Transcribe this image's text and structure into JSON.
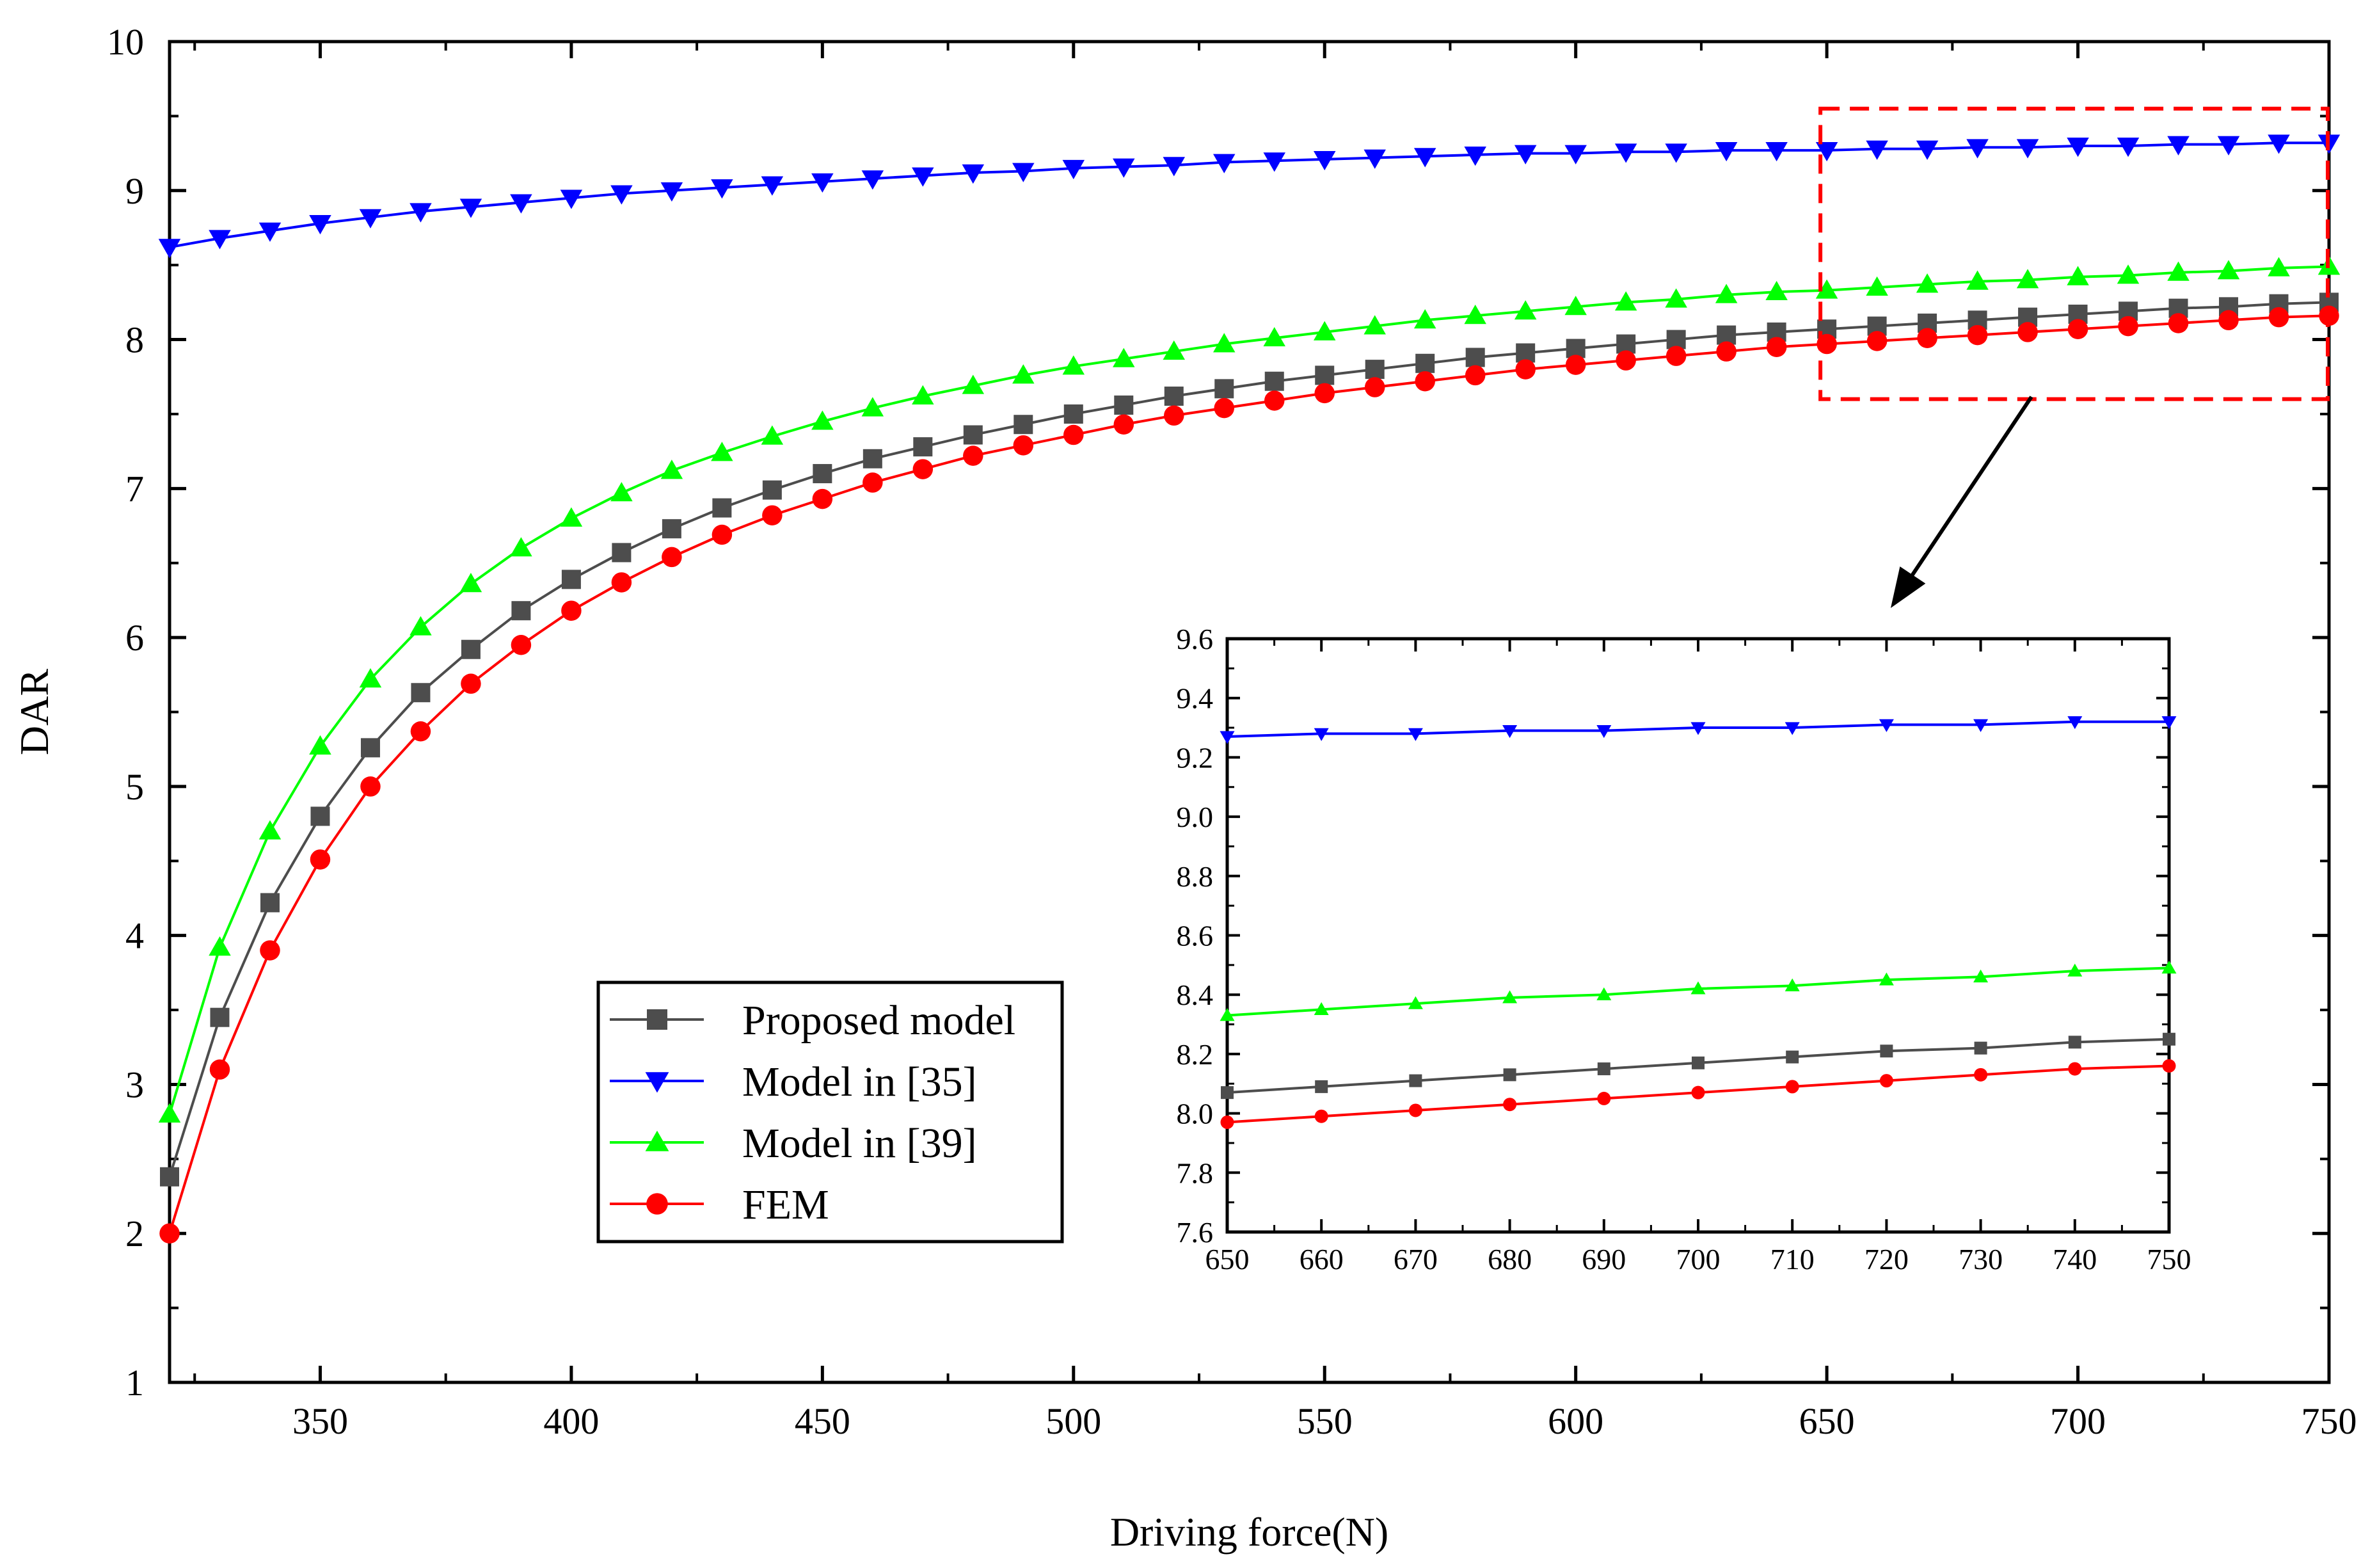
{
  "chart_data": [
    {
      "type": "line",
      "title": "",
      "xlabel": "Driving force(N)",
      "ylabel": "DAR",
      "xlim": [
        320,
        750
      ],
      "ylim": [
        1,
        10
      ],
      "xticks": [
        350,
        400,
        450,
        500,
        550,
        600,
        650,
        700,
        750
      ],
      "yticks": [
        1,
        2,
        3,
        4,
        5,
        6,
        7,
        8,
        9,
        10
      ],
      "legend_position": "center-left",
      "grid": false,
      "x": [
        320,
        330,
        340,
        350,
        360,
        370,
        380,
        390,
        400,
        410,
        420,
        430,
        440,
        450,
        460,
        470,
        480,
        490,
        500,
        510,
        520,
        530,
        540,
        550,
        560,
        570,
        580,
        590,
        600,
        610,
        620,
        630,
        640,
        650,
        660,
        670,
        680,
        690,
        700,
        710,
        720,
        730,
        740,
        750
      ],
      "series": [
        {
          "name": "Proposed model",
          "color": "#4d4d4d",
          "marker": "square",
          "values": [
            2.38,
            3.45,
            4.22,
            4.8,
            5.26,
            5.63,
            5.92,
            6.18,
            6.39,
            6.57,
            6.73,
            6.87,
            6.99,
            7.1,
            7.2,
            7.28,
            7.36,
            7.43,
            7.5,
            7.56,
            7.62,
            7.67,
            7.72,
            7.76,
            7.8,
            7.84,
            7.88,
            7.91,
            7.94,
            7.97,
            8.0,
            8.03,
            8.05,
            8.07,
            8.09,
            8.11,
            8.13,
            8.15,
            8.17,
            8.19,
            8.21,
            8.22,
            8.24,
            8.25
          ]
        },
        {
          "name": "Model in [35]",
          "color": "#0000ff",
          "marker": "triangle-down",
          "values": [
            8.62,
            8.68,
            8.73,
            8.78,
            8.82,
            8.86,
            8.89,
            8.92,
            8.95,
            8.98,
            9.0,
            9.02,
            9.04,
            9.06,
            9.08,
            9.1,
            9.12,
            9.13,
            9.15,
            9.16,
            9.17,
            9.19,
            9.2,
            9.21,
            9.22,
            9.23,
            9.24,
            9.25,
            9.25,
            9.26,
            9.26,
            9.27,
            9.27,
            9.27,
            9.28,
            9.28,
            9.29,
            9.29,
            9.3,
            9.3,
            9.31,
            9.31,
            9.32,
            9.32
          ]
        },
        {
          "name": "Model in [39]",
          "color": "#00ff00",
          "marker": "triangle-up",
          "values": [
            2.8,
            3.92,
            4.7,
            5.27,
            5.72,
            6.07,
            6.36,
            6.6,
            6.8,
            6.97,
            7.12,
            7.24,
            7.35,
            7.45,
            7.54,
            7.62,
            7.69,
            7.76,
            7.82,
            7.87,
            7.92,
            7.97,
            8.01,
            8.05,
            8.09,
            8.13,
            8.16,
            8.19,
            8.22,
            8.25,
            8.27,
            8.3,
            8.32,
            8.33,
            8.35,
            8.37,
            8.39,
            8.4,
            8.42,
            8.43,
            8.45,
            8.46,
            8.48,
            8.49
          ]
        },
        {
          "name": "FEM",
          "color": "#ff0000",
          "marker": "circle",
          "values": [
            2.0,
            3.1,
            3.9,
            4.51,
            5.0,
            5.37,
            5.69,
            5.95,
            6.18,
            6.37,
            6.54,
            6.69,
            6.82,
            6.93,
            7.04,
            7.13,
            7.22,
            7.29,
            7.36,
            7.43,
            7.49,
            7.54,
            7.59,
            7.64,
            7.68,
            7.72,
            7.76,
            7.8,
            7.83,
            7.86,
            7.89,
            7.92,
            7.95,
            7.97,
            7.99,
            8.01,
            8.03,
            8.05,
            8.07,
            8.09,
            8.11,
            8.13,
            8.15,
            8.16
          ]
        }
      ],
      "annotations": [
        "dashed red zoom box over 650–750 N, 7.6–9.55",
        "arrow pointing from zoom box to inset"
      ]
    },
    {
      "type": "line",
      "title": "",
      "role": "inset zoom",
      "xlabel": "",
      "ylabel": "",
      "xlim": [
        650,
        750
      ],
      "ylim": [
        7.6,
        9.6
      ],
      "xticks": [
        650,
        660,
        670,
        680,
        690,
        700,
        710,
        720,
        730,
        740,
        750
      ],
      "yticks": [
        7.6,
        7.8,
        8.0,
        8.2,
        8.4,
        8.6,
        8.8,
        9.0,
        9.2,
        9.4,
        9.6
      ],
      "ytick_labels": [
        "7.6",
        "7.8",
        "8.0",
        "8.2",
        "8.4",
        "8.6",
        "8.8",
        "9.0",
        "9.2",
        "9.4",
        "9.6"
      ],
      "x": [
        650,
        660,
        670,
        680,
        690,
        700,
        710,
        720,
        730,
        740,
        750
      ],
      "series": [
        {
          "name": "Proposed model",
          "color": "#4d4d4d",
          "marker": "square",
          "values": [
            8.07,
            8.09,
            8.11,
            8.13,
            8.15,
            8.17,
            8.19,
            8.21,
            8.22,
            8.24,
            8.25
          ]
        },
        {
          "name": "Model in [35]",
          "color": "#0000ff",
          "marker": "triangle-down",
          "values": [
            9.27,
            9.28,
            9.28,
            9.29,
            9.29,
            9.3,
            9.3,
            9.31,
            9.31,
            9.32,
            9.32
          ]
        },
        {
          "name": "Model in [39]",
          "color": "#00ff00",
          "marker": "triangle-up",
          "values": [
            8.33,
            8.35,
            8.37,
            8.39,
            8.4,
            8.42,
            8.43,
            8.45,
            8.46,
            8.48,
            8.49
          ]
        },
        {
          "name": "FEM",
          "color": "#ff0000",
          "marker": "circle",
          "values": [
            7.97,
            7.99,
            8.01,
            8.03,
            8.05,
            8.07,
            8.09,
            8.11,
            8.13,
            8.15,
            8.16
          ]
        }
      ]
    }
  ],
  "zoom_box_range": {
    "x": [
      650,
      750
    ],
    "y": [
      7.6,
      9.55
    ]
  }
}
